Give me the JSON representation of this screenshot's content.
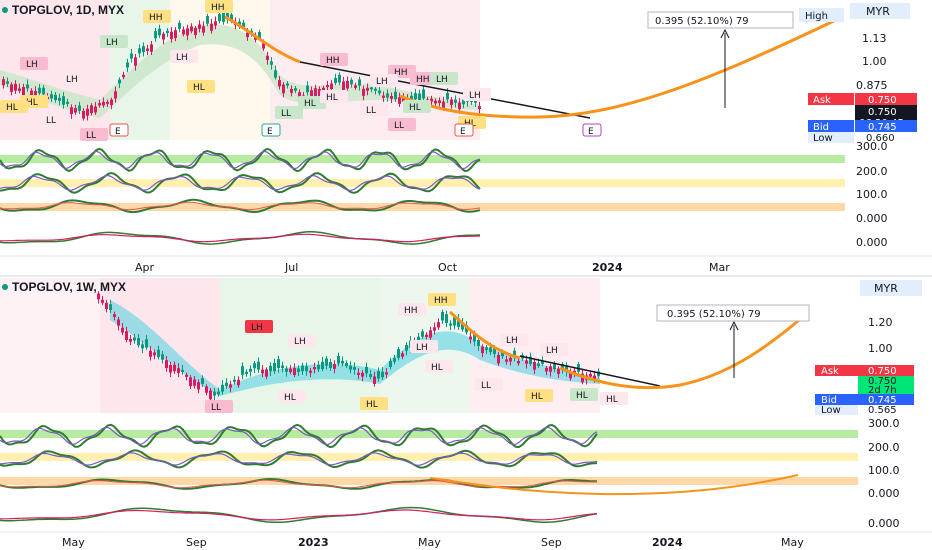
{
  "top": {
    "title": "TOPGLOV, 1D, MYX",
    "currency": "MYR",
    "high_label": "High",
    "measure": "0.395 (52.10%) 79",
    "price_ticks": [
      "1.13",
      "1.00",
      "0.875",
      "0.750",
      "0.660"
    ],
    "ask_label": "Ask",
    "ask": "0.750",
    "last": "0.750",
    "countdown": "06:20:45",
    "bid_label": "Bid",
    "bid": "0.745",
    "low_label": "Low",
    "low": "0.660",
    "osc_ticks": [
      "300.0",
      "200.0",
      "100.0",
      "0.000",
      "0.000"
    ],
    "time_labels": [
      "Apr",
      "Jul",
      "Oct",
      "2024",
      "Mar"
    ],
    "pivots": [
      "HH",
      "HH",
      "HH",
      "LH",
      "LH",
      "HL",
      "HL",
      "HL",
      "LL",
      "LL",
      "LL",
      "LL",
      "LH",
      "LH",
      "LH",
      "HH",
      "HH",
      "HL",
      "HL",
      "LH",
      "LL",
      "HL",
      "HL",
      "LH"
    ],
    "earnings": [
      "E",
      "E",
      "E",
      "E"
    ]
  },
  "bottom": {
    "title": "TOPGLOV, 1W, MYX",
    "currency": "MYR",
    "measure": "0.395 (52.10%) 79",
    "price_ticks": [
      "1.20",
      "1.00"
    ],
    "ask_label": "Ask",
    "ask": "0.750",
    "last": "0.750",
    "countdown": "2d 7h",
    "bid_label": "Bid",
    "bid": "0.745",
    "low_label": "Low",
    "low": "0.565",
    "osc_ticks": [
      "300.0",
      "200.0",
      "100.0",
      "0.000",
      "0.000"
    ],
    "time_labels": [
      "May",
      "Sep",
      "2023",
      "May",
      "Sep",
      "2024",
      "May"
    ],
    "pivots": [
      "LH",
      "LH",
      "HH",
      "HH",
      "LH",
      "LH",
      "HL",
      "HL",
      "HL",
      "LL",
      "LH",
      "HL",
      "LL",
      "HL",
      "HL"
    ]
  },
  "colors": {
    "bull": "#089981",
    "bear": "#d81b60",
    "trend": "#f7931a",
    "ask": "#f23645",
    "bid": "#2962ff",
    "last": "#00e676",
    "osc_green": "#b7eba0",
    "osc_yellow": "#fff0b0",
    "osc_orange": "#ffd8a8"
  }
}
